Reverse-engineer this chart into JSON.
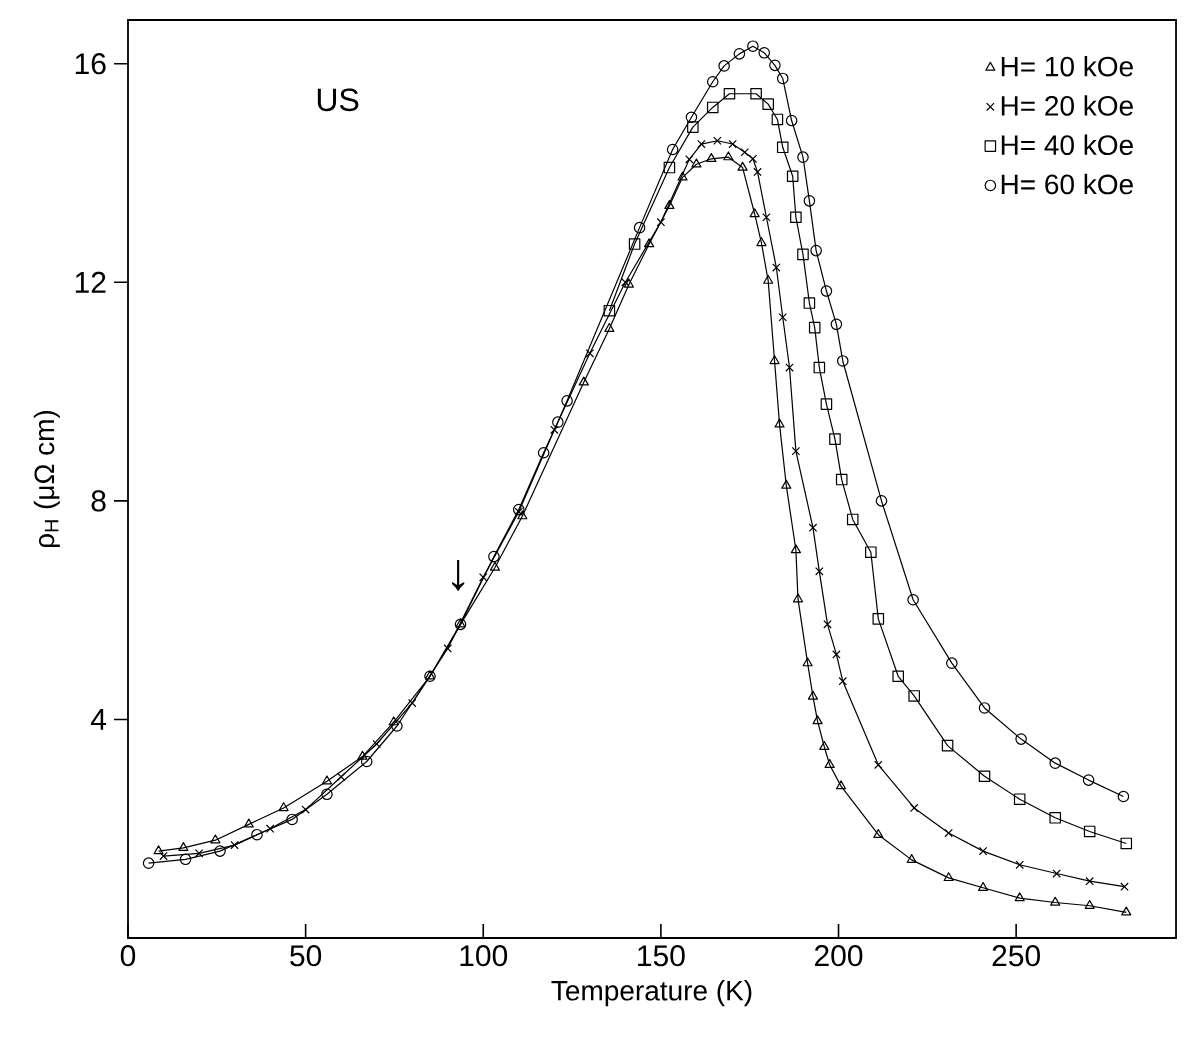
{
  "chart_data": {
    "type": "line",
    "title": "US",
    "xlabel": "Temperature (K)",
    "ylabel": "ρ$_{H}$ (μΩ cm)",
    "xlim": [
      0,
      295
    ],
    "ylim": [
      0,
      16.8
    ],
    "xticks": [
      0,
      50,
      100,
      150,
      200,
      250
    ],
    "yticks": [
      4,
      8,
      12,
      16
    ],
    "grid": false,
    "legend": "top right",
    "line_style": "solid",
    "annotations": [
      "↓"
    ],
    "series": [
      {
        "name": "H= 10 kOe",
        "color": "#000000",
        "marker": "triangle",
        "x": [
          8.6,
          15.6,
          24.6,
          34,
          43.8,
          56,
          66,
          74.8,
          85,
          93.6,
          103.3,
          111,
          128.3,
          135.5,
          141,
          146.7,
          152.4,
          156.1,
          160,
          164.2,
          169,
          173,
          176.4,
          178.3,
          180.2,
          182,
          183.4,
          185.3,
          188,
          188.6,
          191.3,
          192.8,
          194.1,
          196,
          197.5,
          200.7,
          211.2,
          220.6,
          231,
          240.7,
          251,
          261,
          270.7,
          281
        ],
        "values": [
          1.59,
          1.65,
          1.79,
          2.08,
          2.38,
          2.87,
          3.32,
          3.95,
          4.79,
          5.74,
          6.78,
          7.72,
          10.17,
          11.15,
          11.96,
          12.7,
          13.4,
          13.92,
          14.16,
          14.26,
          14.29,
          14.1,
          13.25,
          12.72,
          12.03,
          10.56,
          9.4,
          8.28,
          7.1,
          6.2,
          5.03,
          4.42,
          3.97,
          3.5,
          3.17,
          2.78,
          1.89,
          1.43,
          1.1,
          0.92,
          0.73,
          0.65,
          0.59,
          0.47
        ]
      },
      {
        "name": "H= 20 kOe",
        "color": "#000000",
        "marker": "cross",
        "x": [
          10,
          20,
          30,
          40,
          50,
          60,
          70,
          80,
          90,
          100,
          110,
          120,
          130,
          140,
          150,
          158,
          161.4,
          165.9,
          170.2,
          173.6,
          175.9,
          177.2,
          179.7,
          182.5,
          184.3,
          186.2,
          188,
          192.8,
          194.6,
          196.9,
          199.4,
          201.2,
          211.2,
          221.3,
          231,
          240.7,
          251,
          261.4,
          270.7,
          280.5
        ],
        "values": [
          1.5,
          1.55,
          1.7,
          2.0,
          2.35,
          2.95,
          3.55,
          4.3,
          5.3,
          6.6,
          7.8,
          9.3,
          10.7,
          12.0,
          13.1,
          14.25,
          14.53,
          14.59,
          14.53,
          14.38,
          14.26,
          14.02,
          13.19,
          12.27,
          11.36,
          10.44,
          8.91,
          7.51,
          6.71,
          5.74,
          5.19,
          4.7,
          3.17,
          2.38,
          1.92,
          1.59,
          1.34,
          1.18,
          1.04,
          0.94
        ]
      },
      {
        "name": "H= 40 kOe",
        "color": "#000000",
        "marker": "square",
        "x": [
          135.5,
          142.6,
          152.4,
          159,
          164.6,
          169.3,
          176.8,
          180.2,
          182.8,
          184.3,
          187.1,
          188,
          190,
          191.8,
          193.3,
          194.6,
          196.6,
          199,
          200.9,
          204,
          209.1,
          211.2,
          216.8,
          221.3,
          230.7,
          241.1,
          251,
          261,
          270.7,
          281
        ],
        "values": [
          11.48,
          12.7,
          14.1,
          14.84,
          15.2,
          15.45,
          15.45,
          15.26,
          14.98,
          14.47,
          13.94,
          13.19,
          12.51,
          11.62,
          11.17,
          10.44,
          9.77,
          9.13,
          8.39,
          7.66,
          7.06,
          5.84,
          4.79,
          4.43,
          3.52,
          2.96,
          2.54,
          2.2,
          1.95,
          1.73
        ]
      },
      {
        "name": "H= 60 kOe",
        "color": "#000000",
        "marker": "circle",
        "x": [
          5.8,
          16.2,
          25.9,
          36.3,
          46.2,
          56,
          67.2,
          75.7,
          85,
          93.6,
          103,
          110,
          117,
          121,
          123.6,
          144,
          153.3,
          158.6,
          164.6,
          167.8,
          172.1,
          175.9,
          179.1,
          182.1,
          184.3,
          186.8,
          190,
          191.8,
          193.7,
          196.6,
          199.4,
          201.2,
          212.1,
          221,
          231.9,
          241.1,
          251.4,
          261,
          270.4,
          280.2
        ],
        "values": [
          1.37,
          1.44,
          1.59,
          1.89,
          2.17,
          2.63,
          3.23,
          3.88,
          4.79,
          5.74,
          6.98,
          7.84,
          8.88,
          9.44,
          9.83,
          13.0,
          14.43,
          15.02,
          15.67,
          15.96,
          16.18,
          16.32,
          16.2,
          15.97,
          15.73,
          14.96,
          14.29,
          13.49,
          12.58,
          11.84,
          11.23,
          10.56,
          8.0,
          6.19,
          5.03,
          4.21,
          3.64,
          3.2,
          2.89,
          2.59
        ]
      }
    ]
  }
}
